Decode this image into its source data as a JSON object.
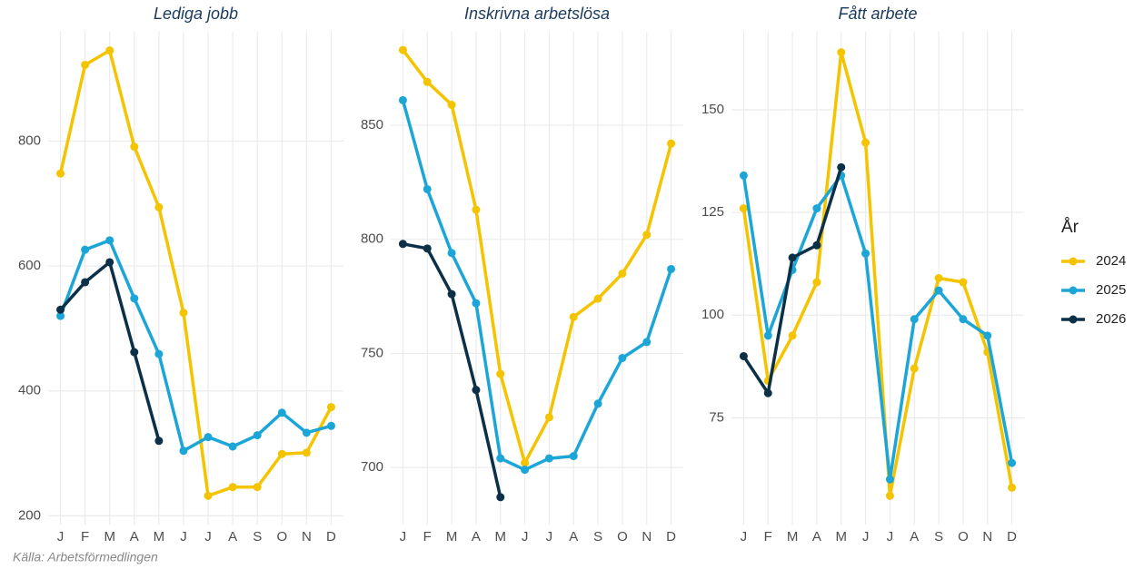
{
  "chart_data": [
    {
      "type": "line",
      "title": "Lediga jobb",
      "categories": [
        "J",
        "F",
        "M",
        "A",
        "M",
        "J",
        "J",
        "A",
        "S",
        "O",
        "N",
        "D"
      ],
      "series": [
        {
          "name": "2024",
          "color": "#f5c400",
          "values": [
            748,
            922,
            945,
            791,
            694,
            525,
            232,
            246,
            246,
            299,
            301,
            374
          ]
        },
        {
          "name": "2025",
          "color": "#1ca6d8",
          "values": [
            520,
            626,
            641,
            548,
            459,
            304,
            326,
            311,
            329,
            365,
            333,
            344
          ]
        },
        {
          "name": "2026",
          "color": "#0b3048",
          "values": [
            530,
            574,
            606,
            462,
            320,
            null,
            null,
            null,
            null,
            null,
            null,
            null
          ]
        }
      ],
      "ylim": [
        186,
        975
      ],
      "yticks": [
        200,
        400,
        600,
        800
      ],
      "grid": true
    },
    {
      "type": "line",
      "title": "Inskrivna arbetslösa",
      "categories": [
        "J",
        "F",
        "M",
        "A",
        "M",
        "J",
        "J",
        "A",
        "S",
        "O",
        "N",
        "D"
      ],
      "series": [
        {
          "name": "2024",
          "color": "#f5c400",
          "values": [
            883,
            869,
            859,
            813,
            741,
            702,
            722,
            766,
            774,
            785,
            802,
            842
          ]
        },
        {
          "name": "2025",
          "color": "#1ca6d8",
          "values": [
            861,
            822,
            794,
            772,
            704,
            699,
            704,
            705,
            728,
            748,
            755,
            787
          ]
        },
        {
          "name": "2026",
          "color": "#0b3048",
          "values": [
            798,
            796,
            776,
            734,
            687,
            null,
            null,
            null,
            null,
            null,
            null,
            null
          ]
        }
      ],
      "ylim": [
        675,
        891
      ],
      "yticks": [
        700,
        750,
        800,
        850
      ],
      "grid": true
    },
    {
      "type": "line",
      "title": "Fått arbete",
      "categories": [
        "J",
        "F",
        "M",
        "A",
        "M",
        "J",
        "J",
        "A",
        "S",
        "O",
        "N",
        "D"
      ],
      "series": [
        {
          "name": "2024",
          "color": "#f5c400",
          "values": [
            126,
            84,
            95,
            108,
            164,
            142,
            56,
            87,
            109,
            108,
            91,
            58
          ]
        },
        {
          "name": "2025",
          "color": "#1ca6d8",
          "values": [
            134,
            95,
            111,
            126,
            134,
            115,
            60,
            99,
            106,
            99,
            95,
            64
          ]
        },
        {
          "name": "2026",
          "color": "#0b3048",
          "values": [
            90,
            81,
            114,
            117,
            136,
            null,
            null,
            null,
            null,
            null,
            null,
            null
          ]
        }
      ],
      "ylim": [
        49,
        169
      ],
      "yticks": [
        75,
        100,
        125,
        150
      ],
      "grid": true
    }
  ],
  "legend": {
    "title": "År",
    "position": "right"
  },
  "caption": "Källa: Arbetsförmedlingen"
}
